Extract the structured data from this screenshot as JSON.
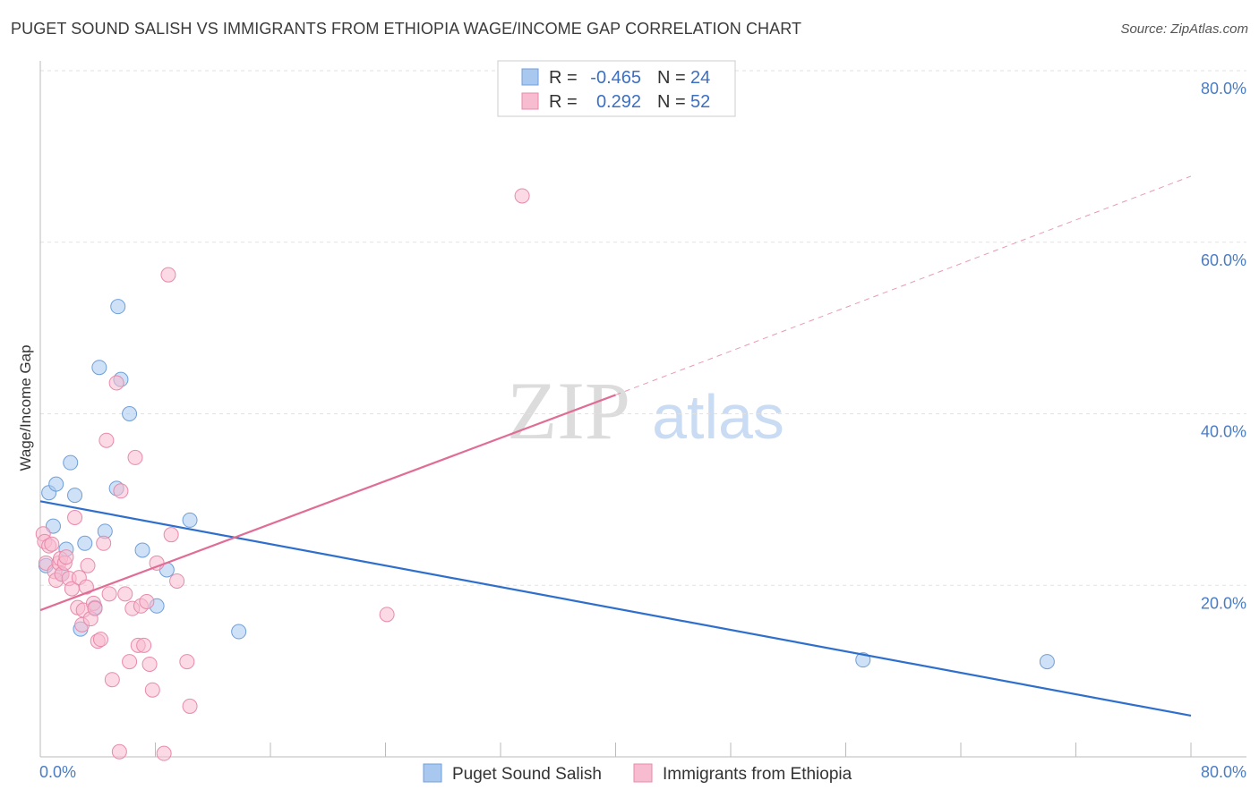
{
  "title": "PUGET SOUND SALISH VS IMMIGRANTS FROM ETHIOPIA WAGE/INCOME GAP CORRELATION CHART",
  "source": "Source: ZipAtlas.com",
  "watermark": {
    "zip": "ZIP",
    "atlas": "atlas"
  },
  "stats_box": {
    "rows": [
      {
        "r_label": "R =",
        "r_value": "-0.465",
        "n_label": "N =",
        "n_value": "24",
        "color": "#a8c8f0"
      },
      {
        "r_label": "R =",
        "r_value": "0.292",
        "n_label": "N =",
        "n_value": "52",
        "color": "#f8bcd0"
      }
    ]
  },
  "chart_data": {
    "type": "scatter",
    "title": "PUGET SOUND SALISH VS IMMIGRANTS FROM ETHIOPIA WAGE/INCOME GAP CORRELATION CHART",
    "xlabel": "",
    "ylabel": "Wage/Income Gap",
    "xlim": [
      0,
      80
    ],
    "ylim": [
      0,
      80
    ],
    "x_tick_labels": [
      "0.0%",
      "80.0%"
    ],
    "y_ticks": [
      20,
      40,
      60,
      80
    ],
    "y_tick_labels": [
      "20.0%",
      "40.0%",
      "60.0%",
      "80.0%"
    ],
    "grid": true,
    "legend": "bottom-center",
    "series": [
      {
        "name": "Puget Sound Salish",
        "color": "#a8c8f0",
        "stroke": "#6f9fd8",
        "trend_color": "#2f6fcc",
        "trend": {
          "x0": 0,
          "y0": 29.8,
          "x1": 80,
          "y1": 4.8
        },
        "points": [
          [
            0.4,
            22.3
          ],
          [
            0.6,
            30.8
          ],
          [
            0.9,
            26.9
          ],
          [
            1.1,
            31.8
          ],
          [
            1.5,
            21.3
          ],
          [
            1.8,
            24.2
          ],
          [
            2.1,
            34.3
          ],
          [
            2.4,
            30.5
          ],
          [
            2.8,
            14.9
          ],
          [
            3.1,
            24.9
          ],
          [
            3.8,
            17.4
          ],
          [
            4.1,
            45.4
          ],
          [
            4.5,
            26.3
          ],
          [
            5.3,
            31.3
          ],
          [
            5.4,
            52.5
          ],
          [
            5.6,
            44.0
          ],
          [
            6.2,
            40.0
          ],
          [
            7.1,
            24.1
          ],
          [
            8.1,
            17.6
          ],
          [
            8.8,
            21.8
          ],
          [
            10.4,
            27.6
          ],
          [
            13.8,
            14.6
          ],
          [
            57.2,
            11.3
          ],
          [
            70.0,
            11.1
          ]
        ]
      },
      {
        "name": "Immigrants from Ethiopia",
        "color": "#f8bcd0",
        "stroke": "#e88aaa",
        "trend_color": "#e06d96",
        "trend": {
          "x0": 0,
          "y0": 17.1,
          "x1": 40,
          "y1": 42.2
        },
        "trend_ext": {
          "x0": 40,
          "y0": 42.2,
          "x1": 80,
          "y1": 67.7
        },
        "points": [
          [
            0.2,
            26.0
          ],
          [
            0.3,
            25.1
          ],
          [
            0.4,
            22.6
          ],
          [
            0.6,
            24.6
          ],
          [
            0.8,
            24.8
          ],
          [
            1.0,
            21.6
          ],
          [
            1.1,
            20.6
          ],
          [
            1.3,
            22.6
          ],
          [
            1.4,
            23.1
          ],
          [
            1.5,
            21.3
          ],
          [
            1.7,
            22.6
          ],
          [
            1.8,
            23.3
          ],
          [
            2.0,
            20.8
          ],
          [
            2.2,
            19.6
          ],
          [
            2.4,
            27.9
          ],
          [
            2.6,
            17.4
          ],
          [
            2.7,
            20.9
          ],
          [
            2.9,
            15.4
          ],
          [
            3.0,
            17.1
          ],
          [
            3.2,
            19.8
          ],
          [
            3.3,
            22.3
          ],
          [
            3.5,
            16.1
          ],
          [
            3.7,
            17.9
          ],
          [
            3.8,
            17.3
          ],
          [
            4.0,
            13.5
          ],
          [
            4.2,
            13.7
          ],
          [
            4.4,
            24.9
          ],
          [
            4.6,
            36.9
          ],
          [
            4.8,
            19.0
          ],
          [
            5.0,
            9.0
          ],
          [
            5.3,
            43.6
          ],
          [
            5.6,
            31.0
          ],
          [
            5.9,
            19.0
          ],
          [
            6.2,
            11.1
          ],
          [
            6.4,
            17.3
          ],
          [
            6.6,
            34.9
          ],
          [
            6.8,
            13.0
          ],
          [
            7.0,
            17.6
          ],
          [
            7.2,
            13.0
          ],
          [
            7.4,
            18.1
          ],
          [
            7.6,
            10.8
          ],
          [
            7.8,
            7.8
          ],
          [
            8.1,
            22.6
          ],
          [
            8.9,
            56.2
          ],
          [
            9.1,
            25.9
          ],
          [
            9.5,
            20.5
          ],
          [
            10.2,
            11.1
          ],
          [
            10.4,
            5.9
          ],
          [
            24.1,
            16.6
          ],
          [
            33.5,
            65.4
          ],
          [
            5.5,
            0.6
          ],
          [
            8.6,
            0.4
          ]
        ]
      }
    ]
  }
}
